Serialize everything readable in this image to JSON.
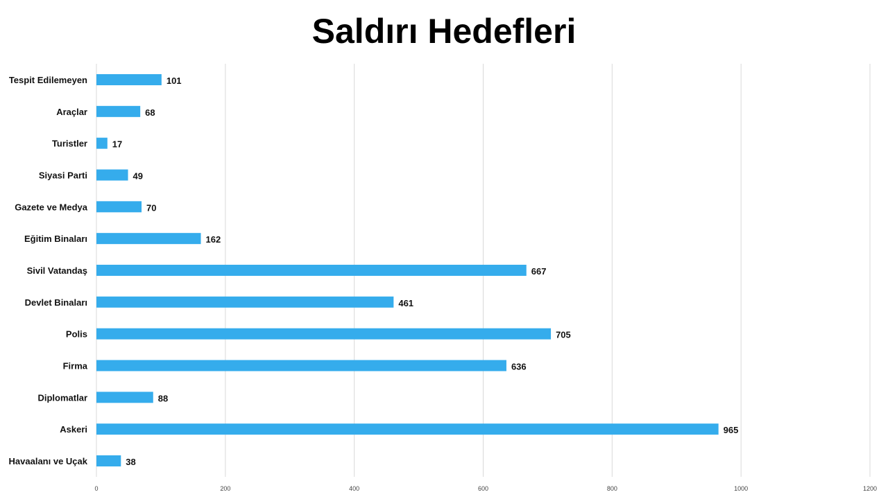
{
  "chart_data": {
    "type": "bar",
    "orientation": "horizontal",
    "title": "Saldırı Hedefleri",
    "xlabel": "",
    "ylabel": "",
    "categories": [
      "Tespit Edilemeyen",
      "Araçlar",
      "Turistler",
      "Siyasi Parti",
      "Gazete ve Medya",
      "Eğitim Binaları",
      "Sivil Vatandaş",
      "Devlet Binaları",
      "Polis",
      "Firma",
      "Diplomatlar",
      "Askeri",
      "Havaalanı ve Uçak"
    ],
    "values": [
      101,
      68,
      17,
      49,
      70,
      162,
      667,
      461,
      705,
      636,
      88,
      965,
      38
    ],
    "xlim": [
      0,
      1200
    ],
    "xticks": [
      0,
      200,
      400,
      600,
      800,
      1000,
      1200
    ],
    "grid": "vertical",
    "legend": "none",
    "bar_color": "#35acec",
    "data_labels": true
  }
}
